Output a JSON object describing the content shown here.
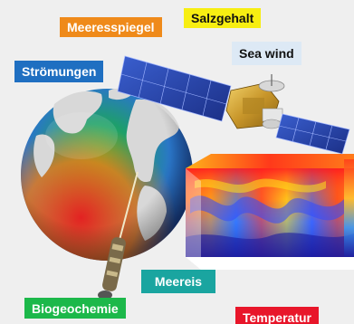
{
  "labels": {
    "meeresspiegel": "Meeresspiegel",
    "salzgehalt": "Salzgehalt",
    "sea_wind": "Sea wind",
    "stroemungen": "Strömungen",
    "meereis": "Meereis",
    "biogeochemie": "Biogeochemie",
    "temperatur": "Temperatur"
  },
  "colors": {
    "meeresspiegel_bg": "#ef8a1a",
    "meeresspiegel_text": "#ffffff",
    "salzgehalt_bg": "#f7ee12",
    "salzgehalt_text": "#111111",
    "sea_wind_bg": "#dde9f5",
    "sea_wind_text": "#111111",
    "stroemungen_bg": "#1f6fc1",
    "stroemungen_text": "#ffffff",
    "meereis_bg": "#1aa5a0",
    "meereis_text": "#ffffff",
    "biogeochemie_bg": "#1cb84a",
    "biogeochemie_text": "#ffffff",
    "temperatur_bg": "#e8162a",
    "temperatur_text": "#ffffff"
  },
  "icons": [
    "globe",
    "satellite-solar-panel",
    "satellite-body",
    "ocean-profile-cube",
    "argo-float-buoy"
  ]
}
